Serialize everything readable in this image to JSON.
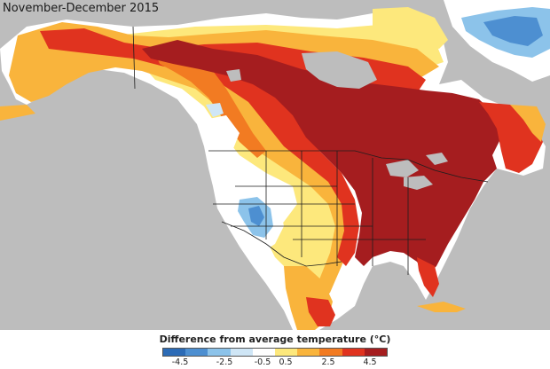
{
  "title": "November-December 2015",
  "legend": {
    "title": "Difference from average temperature (°C)",
    "ticks": [
      "-4.5",
      "-2.5",
      "-0.5",
      "0.5",
      "2.5",
      "4.5"
    ],
    "colors": [
      "#2c6bb6",
      "#4d8fd1",
      "#8cc3ea",
      "#cfe6f6",
      "#ffffff",
      "#fde87c",
      "#f9b43c",
      "#f27b22",
      "#e0331f",
      "#a51d1f"
    ]
  },
  "palette": {
    "ocean": "#bdbdbd",
    "land_neutral": "#ffffff",
    "border": "#1e1e1e"
  }
}
